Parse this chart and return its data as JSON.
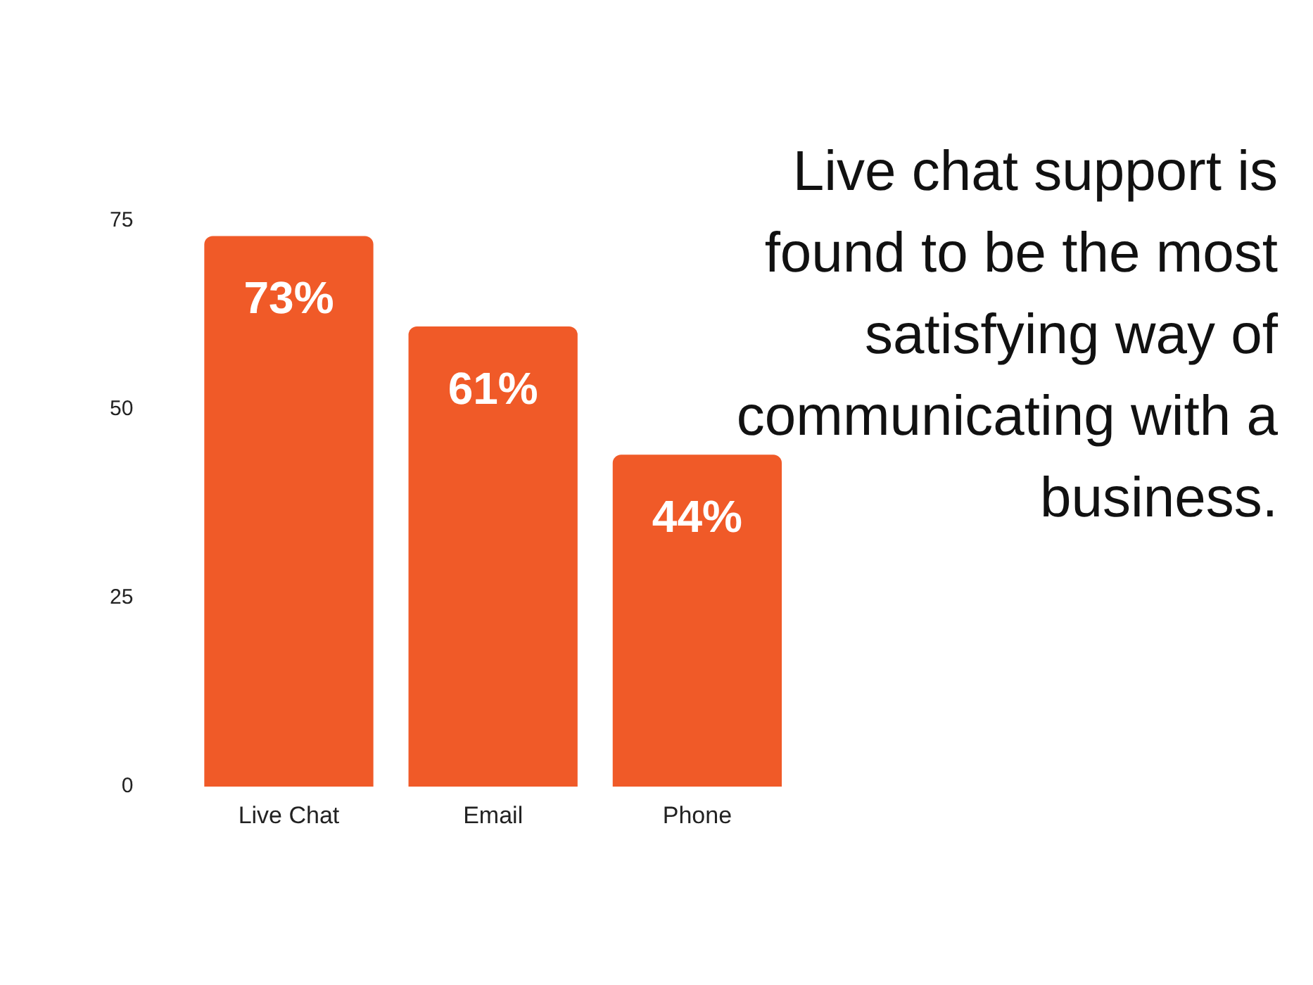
{
  "chart_data": {
    "type": "bar",
    "title": "Live chat support is found to be the most satisfying way of communicating with a business.",
    "categories": [
      "Live Chat",
      "Email",
      "Phone"
    ],
    "values": [
      73,
      61,
      44
    ],
    "value_labels": [
      "73%",
      "61%",
      "44%"
    ],
    "color": "#f05a28",
    "ylim": [
      0,
      75
    ],
    "yticks": [
      0,
      25,
      50,
      75
    ],
    "grid": false,
    "legend": false
  }
}
